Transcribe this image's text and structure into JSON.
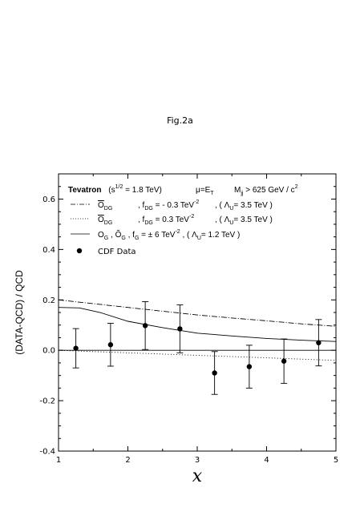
{
  "figure_label": "Fig.2a",
  "chart_data": {
    "type": "line",
    "xlabel": "x",
    "ylabel": "(DATA-QCD) / QCD",
    "xlim": [
      1,
      5
    ],
    "ylim": [
      -0.4,
      0.7
    ],
    "x_ticks": [
      "1",
      "2",
      "3",
      "4",
      "5"
    ],
    "y_ticks": [
      "-0.4",
      "-0.2",
      "0.0",
      "0.2",
      "0.4",
      "0.6"
    ],
    "y_tick_values": [
      -0.4,
      -0.2,
      0.0,
      0.2,
      0.4,
      0.6
    ],
    "x_tick_values": [
      1,
      2,
      3,
      4,
      5
    ],
    "grid": false,
    "legend_position": "top-left",
    "header": {
      "experiment": "Tevatron",
      "sqrt_s": "(s",
      "sqrt_s_exp": "1/2",
      "sqrt_s_val": " = 1.8 TeV)",
      "scale": "μ=E",
      "scale_sub": "T",
      "mass_cut": "M",
      "mass_cut_sub": "jj",
      "mass_cut_val": " > 625 GeV / c",
      "mass_cut_exp": "2"
    },
    "legend": [
      {
        "op": "O",
        "op_sub": "DG",
        "coupling": ",  f",
        "coupling_sub": "DG",
        "coupling_val": " = - 0.3 TeV",
        "exp": "-2",
        "lambda": ",  ( Λ",
        "lambda_sub": "U",
        "lambda_val": "= 3.5 TeV )",
        "style": "dashdot"
      },
      {
        "op": "O",
        "op_sub": "DG",
        "coupling": ",  f",
        "coupling_sub": "DG",
        "coupling_val": " =  0.3 TeV",
        "exp": "-2",
        "lambda": ",  ( Λ",
        "lambda_sub": "U",
        "lambda_val": "= 3.5 TeV )",
        "style": "dotted"
      },
      {
        "op": "O",
        "op_sub": "G",
        "op2": " , Õ",
        "op2_sub": "G",
        "coupling": " ,  f",
        "coupling_sub": "G",
        "coupling_val": "  = ± 6   TeV",
        "exp": "-2",
        "lambda": " ,  ( Λ",
        "lambda_sub": "U",
        "lambda_val": "= 1.2 TeV )",
        "style": "solid"
      }
    ],
    "data_label": "CDF Data",
    "series": [
      {
        "name": "",
        "style": "dashdot",
        "x": [
          1.0,
          1.5,
          2.0,
          2.5,
          3.0,
          3.5,
          4.0,
          4.5,
          5.0
        ],
        "y": [
          0.2,
          0.185,
          0.17,
          0.155,
          0.14,
          0.128,
          0.117,
          0.105,
          0.095
        ]
      },
      {
        "name": "",
        "style": "dotted",
        "x": [
          1.0,
          1.5,
          2.0,
          2.5,
          3.0,
          3.5,
          4.0,
          4.5,
          5.0
        ],
        "y": [
          0.0,
          -0.005,
          -0.01,
          -0.015,
          -0.02,
          -0.025,
          -0.03,
          -0.035,
          -0.04
        ]
      },
      {
        "name": "",
        "style": "solid",
        "x": [
          1.0,
          1.3,
          1.6,
          2.0,
          2.5,
          3.0,
          3.5,
          4.0,
          4.5,
          5.0
        ],
        "y": [
          0.17,
          0.168,
          0.15,
          0.115,
          0.09,
          0.068,
          0.057,
          0.047,
          0.04,
          0.035
        ]
      },
      {
        "name": "",
        "style": "baseline",
        "x": [
          1.0,
          5.0
        ],
        "y": [
          0.0,
          0.0
        ]
      }
    ],
    "points": {
      "x": [
        1.25,
        1.75,
        2.25,
        2.75,
        3.25,
        3.75,
        4.25,
        4.75
      ],
      "y": [
        0.008,
        0.022,
        0.098,
        0.085,
        -0.09,
        -0.065,
        -0.043,
        0.03
      ],
      "err": [
        0.078,
        0.085,
        0.095,
        0.095,
        0.085,
        0.085,
        0.088,
        0.092
      ]
    }
  }
}
